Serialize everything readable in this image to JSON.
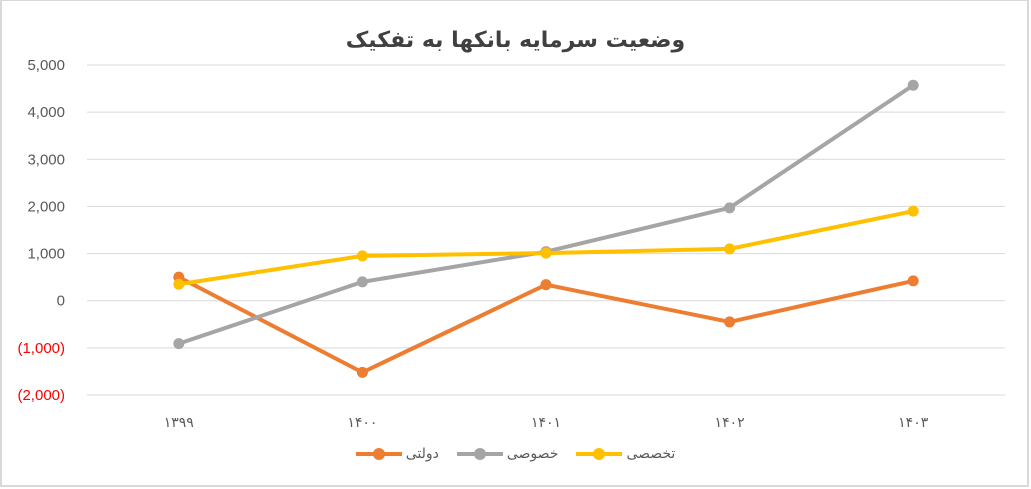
{
  "chart_data": {
    "type": "line",
    "title": "وضعیت سرمایه بانکها به تفکیک",
    "xlabel": "",
    "ylabel": "",
    "categories": [
      "۱۳۹۹",
      "۱۴۰۰",
      "۱۴۰۱",
      "۱۴۰۲",
      "۱۴۰۳"
    ],
    "series": [
      {
        "name": "دولتی",
        "color": "#ED7D31",
        "values": [
          500,
          -1520,
          340,
          -450,
          420
        ]
      },
      {
        "name": "خصوصی",
        "color": "#A5A5A5",
        "values": [
          -910,
          400,
          1040,
          1970,
          4570
        ]
      },
      {
        "name": "تخصصی",
        "color": "#FFC000",
        "values": [
          350,
          950,
          1010,
          1100,
          1900
        ]
      }
    ],
    "ylim": [
      -2000,
      5000
    ],
    "yticks": [
      5000,
      4000,
      3000,
      2000,
      1000,
      0,
      -1000,
      -2000
    ],
    "ytick_labels": [
      "5,000",
      "4,000",
      "3,000",
      "2,000",
      "1,000",
      "0",
      "(1,000)",
      "(2,000)"
    ],
    "negative_label_color": "#FF0000",
    "grid": true,
    "legend_position": "bottom"
  },
  "legend": {
    "items": [
      {
        "label": "تخصصی",
        "color": "#FFC000"
      },
      {
        "label": "خصوصی",
        "color": "#A5A5A5"
      },
      {
        "label": "دولتی",
        "color": "#ED7D31"
      }
    ]
  }
}
